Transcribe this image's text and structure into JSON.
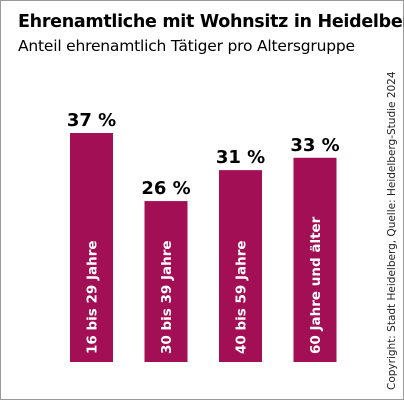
{
  "chart_data": {
    "type": "bar",
    "title": "Ehrenamtliche mit Wohnsitz in Heidelberg",
    "subtitle": "Anteil ehrenamtlich Tätiger pro Altersgruppe",
    "categories": [
      "16 bis 29 Jahre",
      "30 bis 39 Jahre",
      "40 bis 59 Jahre",
      "60 Jahre und älter"
    ],
    "values": [
      37,
      26,
      31,
      33
    ],
    "value_labels": [
      "37 %",
      "26 %",
      "31 %",
      "33 %"
    ],
    "unit": "%",
    "ylim": [
      0,
      37
    ],
    "grid": false,
    "legend": "none",
    "bar_color": "#a30f54",
    "label_color": "#ffffff",
    "copyright": "Copyright: Stadt Heidelberg, Quelle: Heidelberg-Studie 2024"
  }
}
